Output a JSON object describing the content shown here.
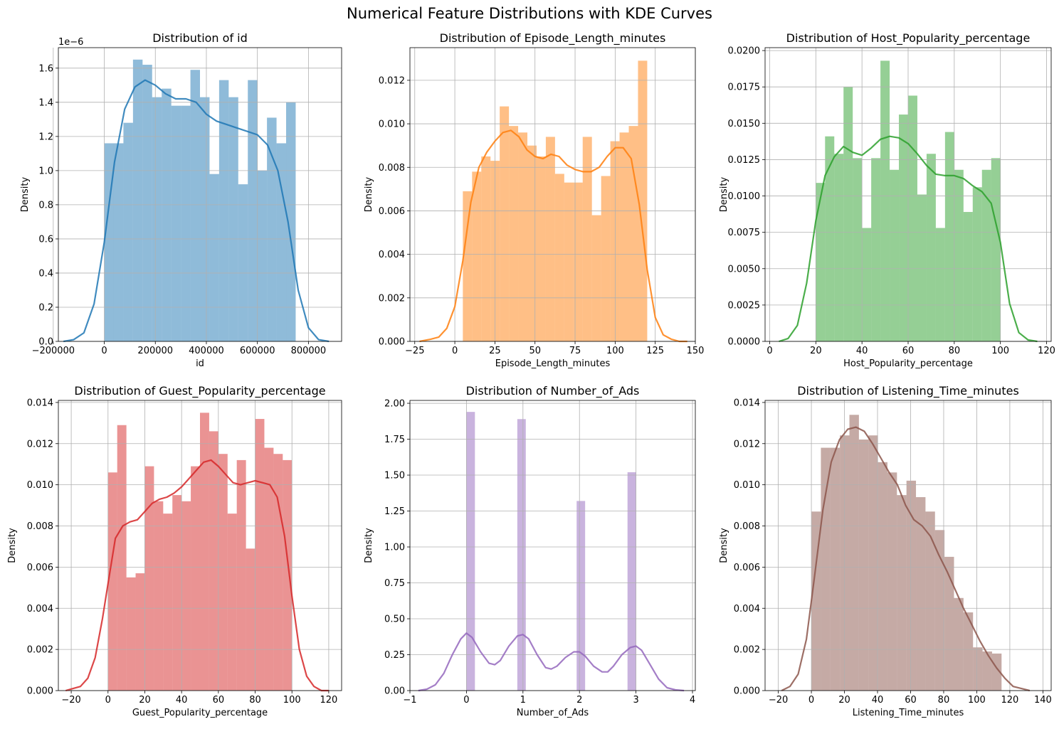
{
  "figure_title": "Numerical Feature Distributions with KDE Curves",
  "colors": {
    "blue": "#1f77b4",
    "orange": "#ff7f0e",
    "green": "#2ca02c",
    "red": "#d62728",
    "purple": "#9467bd",
    "brown": "#8c564b",
    "grid": "#b0b0b0"
  },
  "chart_data": [
    {
      "type": "histogram+kde",
      "title": "Distribution of id",
      "xlabel": "id",
      "ylabel": "Density",
      "color": "#1f77b4",
      "offset_label": "1e−6",
      "xlim": [
        -180000,
        930000
      ],
      "ylim": [
        0,
        1.72
      ],
      "xticks": [
        -200000,
        0,
        200000,
        400000,
        600000,
        800000
      ],
      "xtick_labels": [
        "−200000",
        "0",
        "200000",
        "400000",
        "600000",
        "800000"
      ],
      "yticks": [
        0,
        0.2,
        0.4,
        0.6,
        0.8,
        1.0,
        1.2,
        1.4,
        1.6
      ],
      "ytick_labels": [
        "0.0",
        "0.2",
        "0.4",
        "0.6",
        "0.8",
        "1.0",
        "1.2",
        "1.4",
        "1.6"
      ],
      "bins": {
        "start": 0,
        "end": 750000,
        "values": [
          1.16,
          1.16,
          1.28,
          1.65,
          1.62,
          1.43,
          1.48,
          1.38,
          1.38,
          1.59,
          1.43,
          0.98,
          1.53,
          1.43,
          0.92,
          1.53,
          1.0,
          1.31,
          1.16,
          1.4
        ]
      },
      "kde": {
        "x": [
          -160000,
          -120000,
          -80000,
          -40000,
          0,
          40000,
          80000,
          120000,
          160000,
          200000,
          240000,
          280000,
          320000,
          360000,
          400000,
          440000,
          480000,
          520000,
          560000,
          600000,
          640000,
          680000,
          720000,
          760000,
          800000,
          840000,
          880000
        ],
        "y": [
          0.0,
          0.01,
          0.05,
          0.22,
          0.58,
          1.05,
          1.36,
          1.49,
          1.53,
          1.5,
          1.45,
          1.42,
          1.42,
          1.4,
          1.33,
          1.29,
          1.27,
          1.25,
          1.23,
          1.21,
          1.15,
          1.0,
          0.7,
          0.3,
          0.08,
          0.01,
          0.0
        ]
      }
    },
    {
      "type": "histogram+kde",
      "title": "Distribution of Episode_Length_minutes",
      "xlabel": "Episode_Length_minutes",
      "ylabel": "Density",
      "color": "#ff7f0e",
      "xlim": [
        -28,
        150
      ],
      "ylim": [
        0,
        0.0135
      ],
      "xticks": [
        -25,
        0,
        25,
        50,
        75,
        100,
        125,
        150
      ],
      "xtick_labels": [
        "−25",
        "0",
        "25",
        "50",
        "75",
        "100",
        "125",
        "150"
      ],
      "yticks": [
        0,
        0.002,
        0.004,
        0.006,
        0.008,
        0.01,
        0.012
      ],
      "ytick_labels": [
        "0.000",
        "0.002",
        "0.004",
        "0.006",
        "0.008",
        "0.010",
        "0.012"
      ],
      "bins": {
        "start": 5,
        "end": 120,
        "values": [
          0.0069,
          0.0078,
          0.0085,
          0.0083,
          0.0108,
          0.0099,
          0.0096,
          0.009,
          0.0085,
          0.0094,
          0.0077,
          0.0073,
          0.0073,
          0.0094,
          0.0058,
          0.0076,
          0.0092,
          0.0096,
          0.0099,
          0.0129
        ]
      },
      "kde": {
        "x": [
          -22,
          -15,
          -10,
          -5,
          0,
          5,
          10,
          15,
          20,
          25,
          30,
          35,
          40,
          45,
          50,
          55,
          60,
          65,
          70,
          75,
          80,
          85,
          90,
          95,
          100,
          105,
          110,
          115,
          120,
          125,
          130,
          135,
          140,
          145
        ],
        "y": [
          0.0,
          0.0001,
          0.0002,
          0.0006,
          0.0016,
          0.0037,
          0.0064,
          0.008,
          0.0087,
          0.0092,
          0.0096,
          0.0097,
          0.0094,
          0.0088,
          0.0085,
          0.0084,
          0.0086,
          0.0085,
          0.0081,
          0.0079,
          0.0078,
          0.0078,
          0.008,
          0.0085,
          0.0089,
          0.0089,
          0.0084,
          0.0063,
          0.0033,
          0.0011,
          0.0003,
          0.0001,
          0.0,
          0.0
        ]
      }
    },
    {
      "type": "histogram+kde",
      "title": "Distribution of Host_Popularity_percentage",
      "xlabel": "Host_Popularity_percentage",
      "ylabel": "Density",
      "color": "#2ca02c",
      "xlim": [
        -2,
        122
      ],
      "ylim": [
        0,
        0.0202
      ],
      "xticks": [
        0,
        20,
        40,
        60,
        80,
        100,
        120
      ],
      "xtick_labels": [
        "0",
        "20",
        "40",
        "60",
        "80",
        "100",
        "120"
      ],
      "yticks": [
        0,
        0.0025,
        0.005,
        0.0075,
        0.01,
        0.0125,
        0.015,
        0.0175,
        0.02
      ],
      "ytick_labels": [
        "0.0000",
        "0.0025",
        "0.0050",
        "0.0075",
        "0.0100",
        "0.0125",
        "0.0150",
        "0.0175",
        "0.0200"
      ],
      "bins": {
        "start": 20,
        "end": 100,
        "values": [
          0.0109,
          0.0141,
          0.0129,
          0.0175,
          0.0126,
          0.0078,
          0.0126,
          0.0193,
          0.0118,
          0.0156,
          0.0169,
          0.0101,
          0.0129,
          0.0078,
          0.0144,
          0.0118,
          0.0089,
          0.0106,
          0.0118,
          0.0126
        ]
      },
      "kde": {
        "x": [
          4,
          8,
          12,
          16,
          20,
          24,
          28,
          32,
          36,
          40,
          44,
          48,
          52,
          56,
          60,
          64,
          68,
          72,
          76,
          80,
          84,
          88,
          92,
          96,
          100,
          104,
          108,
          112,
          116
        ],
        "y": [
          0.0,
          0.0002,
          0.0011,
          0.004,
          0.0083,
          0.0114,
          0.0127,
          0.0134,
          0.013,
          0.0128,
          0.0133,
          0.0139,
          0.0141,
          0.014,
          0.0136,
          0.0129,
          0.0121,
          0.0115,
          0.0114,
          0.0114,
          0.0112,
          0.0107,
          0.0103,
          0.0095,
          0.0068,
          0.0026,
          0.0006,
          0.0001,
          0.0
        ]
      }
    },
    {
      "type": "histogram+kde",
      "title": "Distribution of Guest_Popularity_percentage",
      "xlabel": "Guest_Popularity_percentage",
      "ylabel": "Density",
      "color": "#d62728",
      "xlim": [
        -27,
        127
      ],
      "ylim": [
        0,
        0.0141
      ],
      "xticks": [
        -20,
        0,
        20,
        40,
        60,
        80,
        100,
        120
      ],
      "xtick_labels": [
        "−20",
        "0",
        "20",
        "40",
        "60",
        "80",
        "100",
        "120"
      ],
      "yticks": [
        0,
        0.002,
        0.004,
        0.006,
        0.008,
        0.01,
        0.012,
        0.014
      ],
      "ytick_labels": [
        "0.000",
        "0.002",
        "0.004",
        "0.006",
        "0.008",
        "0.010",
        "0.012",
        "0.014"
      ],
      "bins": {
        "start": 0,
        "end": 100,
        "values": [
          0.0106,
          0.0129,
          0.0055,
          0.0057,
          0.0109,
          0.0092,
          0.0086,
          0.0095,
          0.0092,
          0.0109,
          0.0135,
          0.0126,
          0.0115,
          0.0086,
          0.0112,
          0.0069,
          0.0132,
          0.0118,
          0.0115,
          0.0112
        ]
      },
      "kde": {
        "x": [
          -23,
          -19,
          -15,
          -11,
          -7,
          -3,
          0,
          4,
          8,
          12,
          16,
          20,
          24,
          28,
          32,
          36,
          40,
          44,
          48,
          52,
          56,
          60,
          64,
          68,
          72,
          76,
          80,
          84,
          88,
          92,
          96,
          100,
          104,
          108,
          112,
          116,
          120
        ],
        "y": [
          0.0,
          0.0001,
          0.0002,
          0.0006,
          0.0016,
          0.0035,
          0.0052,
          0.0074,
          0.008,
          0.0082,
          0.0083,
          0.0087,
          0.0091,
          0.0093,
          0.0094,
          0.0096,
          0.0099,
          0.0103,
          0.0107,
          0.0111,
          0.0112,
          0.0109,
          0.0105,
          0.0101,
          0.01,
          0.0101,
          0.0102,
          0.0101,
          0.01,
          0.0094,
          0.0075,
          0.0046,
          0.002,
          0.0007,
          0.0002,
          0.0,
          0.0
        ]
      }
    },
    {
      "type": "histogram+kde",
      "title": "Distribution of Number_of_Ads",
      "xlabel": "Number_of_Ads",
      "ylabel": "Density",
      "color": "#9467bd",
      "xlim": [
        -1.0,
        4.05
      ],
      "ylim": [
        0,
        2.02
      ],
      "xticks": [
        -1,
        0,
        1,
        2,
        3,
        4
      ],
      "xtick_labels": [
        "−1",
        "0",
        "1",
        "2",
        "3",
        "4"
      ],
      "yticks": [
        0,
        0.25,
        0.5,
        0.75,
        1.0,
        1.25,
        1.5,
        1.75,
        2.0
      ],
      "ytick_labels": [
        "0.00",
        "0.25",
        "0.50",
        "0.75",
        "1.00",
        "1.25",
        "1.50",
        "1.75",
        "2.00"
      ],
      "bins": {
        "start": 0,
        "end": 3,
        "values": [
          1.94,
          0,
          0,
          0,
          0,
          0,
          1.89,
          0,
          0,
          0,
          0,
          0,
          0,
          1.32,
          0,
          0,
          0,
          0,
          0,
          1.52
        ]
      },
      "kde": {
        "x": [
          -0.85,
          -0.7,
          -0.55,
          -0.4,
          -0.25,
          -0.1,
          0,
          0.1,
          0.25,
          0.4,
          0.5,
          0.6,
          0.75,
          0.9,
          1.0,
          1.1,
          1.25,
          1.4,
          1.5,
          1.6,
          1.75,
          1.9,
          2.0,
          2.1,
          2.25,
          2.4,
          2.5,
          2.6,
          2.75,
          2.9,
          3.0,
          3.1,
          3.25,
          3.4,
          3.55,
          3.7,
          3.85
        ],
        "y": [
          0.0,
          0.01,
          0.04,
          0.12,
          0.25,
          0.36,
          0.4,
          0.37,
          0.27,
          0.19,
          0.18,
          0.21,
          0.31,
          0.38,
          0.39,
          0.36,
          0.25,
          0.16,
          0.15,
          0.17,
          0.23,
          0.27,
          0.27,
          0.24,
          0.17,
          0.13,
          0.13,
          0.17,
          0.25,
          0.3,
          0.31,
          0.28,
          0.18,
          0.08,
          0.02,
          0.005,
          0.0
        ]
      }
    },
    {
      "type": "histogram+kde",
      "title": "Distribution of Listening_Time_minutes",
      "xlabel": "Listening_Time_minutes",
      "ylabel": "Density",
      "color": "#8c564b",
      "xlim": [
        -28,
        145
      ],
      "ylim": [
        0,
        0.0141
      ],
      "xticks": [
        -20,
        0,
        20,
        40,
        60,
        80,
        100,
        120,
        140
      ],
      "xtick_labels": [
        "−20",
        "0",
        "20",
        "40",
        "60",
        "80",
        "100",
        "120",
        "140"
      ],
      "yticks": [
        0,
        0.002,
        0.004,
        0.006,
        0.008,
        0.01,
        0.012,
        0.014
      ],
      "ytick_labels": [
        "0.000",
        "0.002",
        "0.004",
        "0.006",
        "0.008",
        "0.010",
        "0.012",
        "0.014"
      ],
      "bins": {
        "start": 0,
        "end": 115,
        "values": [
          0.0087,
          0.0118,
          0.0118,
          0.0124,
          0.0134,
          0.0122,
          0.0124,
          0.0111,
          0.0106,
          0.0095,
          0.0102,
          0.0094,
          0.0087,
          0.0078,
          0.0065,
          0.0045,
          0.0038,
          0.0021,
          0.0019,
          0.0018
        ]
      },
      "kde": {
        "x": [
          -18,
          -13,
          -8,
          -3,
          2,
          7,
          12,
          17,
          22,
          27,
          32,
          37,
          42,
          47,
          52,
          57,
          62,
          67,
          72,
          77,
          82,
          87,
          92,
          97,
          102,
          107,
          112,
          117,
          122,
          127,
          132
        ],
        "y": [
          0.0,
          0.0002,
          0.0008,
          0.0025,
          0.0056,
          0.0088,
          0.0111,
          0.0122,
          0.0127,
          0.0128,
          0.0126,
          0.012,
          0.0113,
          0.0106,
          0.01,
          0.009,
          0.0083,
          0.008,
          0.0075,
          0.0066,
          0.0058,
          0.0049,
          0.004,
          0.0032,
          0.0024,
          0.0017,
          0.0011,
          0.0006,
          0.0002,
          0.0001,
          0.0
        ]
      }
    }
  ]
}
